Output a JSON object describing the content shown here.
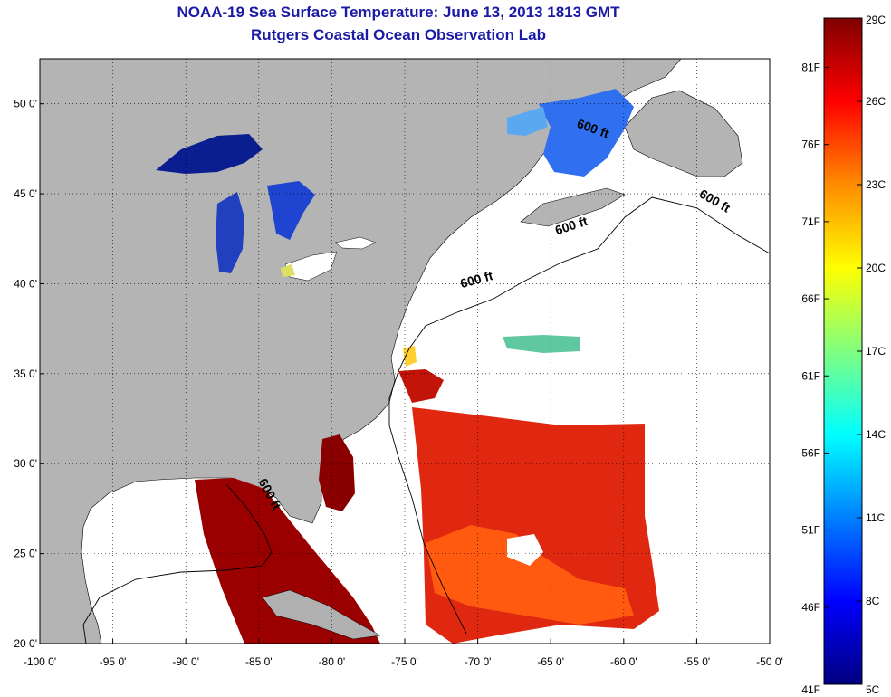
{
  "title": "NOAA-19 Sea Surface Temperature:  June 13, 2013 1813 GMT",
  "subtitle": "Rutgers Coastal Ocean Observation Lab",
  "map": {
    "lon_range": [
      -100,
      -50
    ],
    "lat_range": [
      20,
      52.5
    ],
    "lon_ticks": [
      {
        "value": -100,
        "label": "-100 0'"
      },
      {
        "value": -95,
        "label": "-95 0'"
      },
      {
        "value": -90,
        "label": "-90 0'"
      },
      {
        "value": -85,
        "label": "-85 0'"
      },
      {
        "value": -80,
        "label": "-80 0'"
      },
      {
        "value": -75,
        "label": "-75 0'"
      },
      {
        "value": -70,
        "label": "-70 0'"
      },
      {
        "value": -65,
        "label": "-65 0'"
      },
      {
        "value": -60,
        "label": "-60 0'"
      },
      {
        "value": -55,
        "label": "-55 0'"
      },
      {
        "value": -50,
        "label": "-50 0'"
      }
    ],
    "lat_ticks": [
      {
        "value": 20,
        "label": "20 0'"
      },
      {
        "value": 25,
        "label": "25 0'"
      },
      {
        "value": 30,
        "label": "30 0'"
      },
      {
        "value": 35,
        "label": "35 0'"
      },
      {
        "value": 40,
        "label": "40 0'"
      },
      {
        "value": 45,
        "label": "45 0'"
      },
      {
        "value": 50,
        "label": "50 0'"
      }
    ],
    "grid": "dotted",
    "land_color": "#b4b4b4",
    "contour_labels": [
      {
        "text": "600 ft",
        "lon": -62.2,
        "lat": 48.4,
        "rotation": 20
      },
      {
        "text": "600 ft",
        "lon": -53.9,
        "lat": 44.4,
        "rotation": 30
      },
      {
        "text": "600 ft",
        "lon": -63.5,
        "lat": 43.0,
        "rotation": -18
      },
      {
        "text": "600 ft",
        "lon": -70.0,
        "lat": 40.0,
        "rotation": -15
      },
      {
        "text": "600 ft",
        "lon": -84.5,
        "lat": 28.2,
        "rotation": 62
      }
    ]
  },
  "colorbar": {
    "celsius": [
      "29C",
      "26C",
      "23C",
      "20C",
      "17C",
      "14C",
      "11C",
      "8C",
      "5C"
    ],
    "fahrenheit": [
      "81F",
      "76F",
      "71F",
      "66F",
      "61F",
      "56F",
      "51F",
      "46F",
      "41F"
    ],
    "celsius_values": [
      29,
      26,
      23,
      20,
      17,
      14,
      11,
      8,
      5
    ],
    "fahrenheit_values": [
      81,
      76,
      71,
      66,
      61,
      56,
      51,
      46,
      41
    ],
    "range_c": [
      5,
      29
    ],
    "colors": [
      "#7f0000",
      "#ff0000",
      "#ff8c00",
      "#ffff00",
      "#80ff80",
      "#00ffff",
      "#0080ff",
      "#0000ff",
      "#00007f"
    ]
  }
}
